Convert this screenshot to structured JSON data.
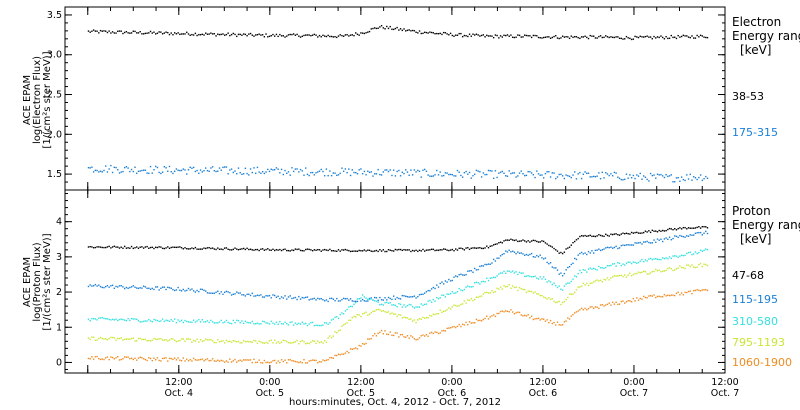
{
  "chart_data": [
    {
      "type": "scatter",
      "panel": "electron",
      "ylabel_lines": [
        "ACE EPAM",
        "log(Electron Flux)",
        "[1/(cm²s ster MeV)]"
      ],
      "ylim": [
        1.3,
        3.6
      ],
      "y_ticks": [
        1.5,
        2.0,
        2.5,
        3.0,
        3.5
      ],
      "y_tick_labels": [
        "1.5",
        "2.0",
        "2.5",
        "3.0",
        "3.5"
      ],
      "legend_title_lines": [
        "Electron",
        "Energy ranges",
        "[keV]"
      ],
      "series": [
        {
          "name": "38-53",
          "color": "#000000",
          "x": [
            0,
            0.2,
            0.4,
            0.6,
            0.8,
            1.0,
            1.2,
            1.4,
            1.5,
            1.6,
            1.7,
            1.8,
            2.0,
            2.2,
            2.4,
            2.6,
            2.8,
            3.0,
            3.2,
            3.4
          ],
          "y": [
            3.3,
            3.29,
            3.28,
            3.27,
            3.26,
            3.25,
            3.25,
            3.24,
            3.28,
            3.36,
            3.33,
            3.3,
            3.26,
            3.24,
            3.24,
            3.23,
            3.23,
            3.22,
            3.23,
            3.24
          ],
          "noise": 0.02
        },
        {
          "name": "175-315",
          "color": "#1a7fd4",
          "x": [
            0,
            0.4,
            0.8,
            1.2,
            1.6,
            2.0,
            2.4,
            2.8,
            3.2,
            3.4
          ],
          "y": [
            1.58,
            1.56,
            1.55,
            1.54,
            1.53,
            1.51,
            1.5,
            1.49,
            1.46,
            1.48
          ],
          "noise": 0.05
        }
      ]
    },
    {
      "type": "scatter",
      "panel": "proton",
      "ylabel_lines": [
        "ACE EPAM",
        "log(Proton Flux)",
        "[1/(cm²s ster MeV)]"
      ],
      "ylim": [
        -0.3,
        4.9
      ],
      "y_ticks": [
        0,
        1,
        2,
        3,
        4
      ],
      "y_tick_labels": [
        "0",
        "1",
        "2",
        "3",
        "4"
      ],
      "legend_title_lines": [
        "Proton",
        "Energy ranges",
        "[keV]"
      ],
      "series": [
        {
          "name": "47-68",
          "color": "#000000",
          "x": [
            0,
            0.5,
            1.0,
            1.5,
            1.8,
            2.0,
            2.2,
            2.3,
            2.5,
            2.6,
            2.7,
            2.9,
            3.1,
            3.3,
            3.4
          ],
          "y": [
            3.3,
            3.28,
            3.22,
            3.2,
            3.2,
            3.22,
            3.3,
            3.5,
            3.45,
            3.1,
            3.6,
            3.65,
            3.75,
            3.85,
            3.85
          ],
          "noise": 0.03
        },
        {
          "name": "115-195",
          "color": "#1a7fd4",
          "x": [
            0,
            0.5,
            1.0,
            1.3,
            1.5,
            1.8,
            2.0,
            2.2,
            2.3,
            2.5,
            2.6,
            2.7,
            2.9,
            3.1,
            3.3,
            3.4
          ],
          "y": [
            2.2,
            2.1,
            1.9,
            1.8,
            1.8,
            1.9,
            2.4,
            2.8,
            3.2,
            3.0,
            2.5,
            3.1,
            3.3,
            3.45,
            3.65,
            3.7
          ],
          "noise": 0.05
        },
        {
          "name": "310-580",
          "color": "#33e0e0",
          "x": [
            0,
            0.5,
            1.0,
            1.3,
            1.4,
            1.5,
            1.6,
            1.8,
            2.0,
            2.2,
            2.3,
            2.5,
            2.6,
            2.7,
            2.9,
            3.1,
            3.3,
            3.4
          ],
          "y": [
            1.25,
            1.2,
            1.15,
            1.1,
            1.4,
            1.9,
            1.7,
            1.6,
            2.0,
            2.4,
            2.6,
            2.4,
            2.1,
            2.6,
            2.8,
            2.95,
            3.1,
            3.2
          ],
          "noise": 0.05
        },
        {
          "name": "795-1193",
          "color": "#c8e633",
          "x": [
            0,
            0.5,
            1.0,
            1.3,
            1.45,
            1.6,
            1.8,
            2.0,
            2.2,
            2.3,
            2.5,
            2.6,
            2.7,
            2.9,
            3.1,
            3.3,
            3.4
          ],
          "y": [
            0.7,
            0.65,
            0.6,
            0.6,
            1.3,
            1.5,
            1.2,
            1.6,
            2.0,
            2.2,
            1.9,
            1.7,
            2.2,
            2.45,
            2.6,
            2.75,
            2.8
          ],
          "noise": 0.05
        },
        {
          "name": "1060-1900",
          "color": "#ee8c22",
          "x": [
            0,
            0.5,
            1.0,
            1.3,
            1.5,
            1.6,
            1.8,
            2.0,
            2.2,
            2.3,
            2.5,
            2.6,
            2.7,
            2.9,
            3.1,
            3.3,
            3.4
          ],
          "y": [
            0.15,
            0.1,
            0.05,
            0.05,
            0.5,
            0.9,
            0.7,
            1.0,
            1.3,
            1.5,
            1.2,
            1.1,
            1.5,
            1.7,
            1.9,
            2.0,
            2.1
          ],
          "noise": 0.05
        }
      ]
    }
  ],
  "x_axis": {
    "xlim": [
      -0.125,
      3.5
    ],
    "major_ticks": [
      0,
      0.5,
      1.0,
      1.5,
      2.0,
      2.5,
      3.0,
      3.5
    ],
    "tick_time_labels": [
      "12:00",
      "0:00",
      "12:00",
      "0:00",
      "12:00",
      "0:00",
      "12:00"
    ],
    "tick_date_labels": [
      "Oct. 4",
      "Oct. 5",
      "Oct. 5",
      "Oct. 6",
      "Oct. 6",
      "Oct. 7",
      "Oct. 7"
    ],
    "label": "hours:minutes, Oct.  4, 2012 - Oct.  7, 2012"
  }
}
